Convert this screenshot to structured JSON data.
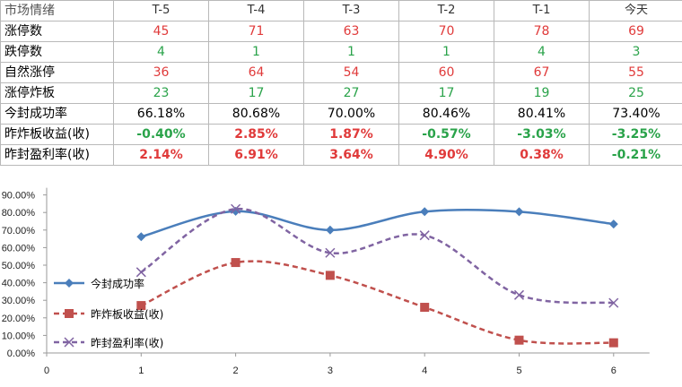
{
  "table": {
    "header": [
      "市场情绪",
      "T-5",
      "T-4",
      "T-3",
      "T-2",
      "T-1",
      "今天"
    ],
    "rows": [
      {
        "label": "涨停数",
        "values": [
          "45",
          "71",
          "63",
          "70",
          "78",
          "69"
        ],
        "style": "red"
      },
      {
        "label": "跌停数",
        "values": [
          "4",
          "1",
          "1",
          "1",
          "4",
          "3"
        ],
        "style": "green"
      },
      {
        "label": "自然涨停",
        "values": [
          "36",
          "64",
          "54",
          "60",
          "67",
          "55"
        ],
        "style": "red"
      },
      {
        "label": "涨停炸板",
        "values": [
          "23",
          "17",
          "27",
          "17",
          "19",
          "25"
        ],
        "style": "green"
      },
      {
        "label": "今封成功率",
        "values": [
          "66.18%",
          "80.68%",
          "70.00%",
          "80.46%",
          "80.41%",
          "73.40%"
        ],
        "style": "black"
      },
      {
        "label": "昨炸板收益(收)",
        "values": [
          "-0.40%",
          "2.85%",
          "1.87%",
          "-0.57%",
          "-3.03%",
          "-3.25%"
        ],
        "style": "signed"
      },
      {
        "label": "昨封盈利率(收)",
        "values": [
          "2.14%",
          "6.91%",
          "3.64%",
          "4.90%",
          "0.38%",
          "-0.21%"
        ],
        "style": "signed"
      }
    ]
  },
  "chart_data": {
    "type": "line",
    "x": [
      1,
      2,
      3,
      4,
      5,
      6
    ],
    "xlim": [
      0,
      6
    ],
    "xticks": [
      "0",
      "1",
      "2",
      "3",
      "4",
      "5",
      "6"
    ],
    "ylim": [
      0,
      90
    ],
    "yticks": [
      "0.00%",
      "10.00%",
      "20.00%",
      "30.00%",
      "40.00%",
      "50.00%",
      "60.00%",
      "70.00%",
      "80.00%",
      "90.00%"
    ],
    "series": [
      {
        "name": "今封成功率",
        "values": [
          66.18,
          80.68,
          70.0,
          80.46,
          80.41,
          73.4
        ],
        "color": "#4a7ebb",
        "marker": "diamond",
        "dash": "solid"
      },
      {
        "name": "昨炸板收益(收)",
        "values": [
          27,
          51.5,
          44.2,
          26,
          7.3,
          5.8
        ],
        "color": "#c0504d",
        "marker": "square",
        "dash": "dashed"
      },
      {
        "name": "昨封盈利率(收)",
        "values": [
          46,
          82,
          57,
          67,
          33,
          28.5
        ],
        "color": "#8064a2",
        "marker": "x",
        "dash": "dashed"
      }
    ],
    "legend_placement": "left",
    "grid": false
  }
}
